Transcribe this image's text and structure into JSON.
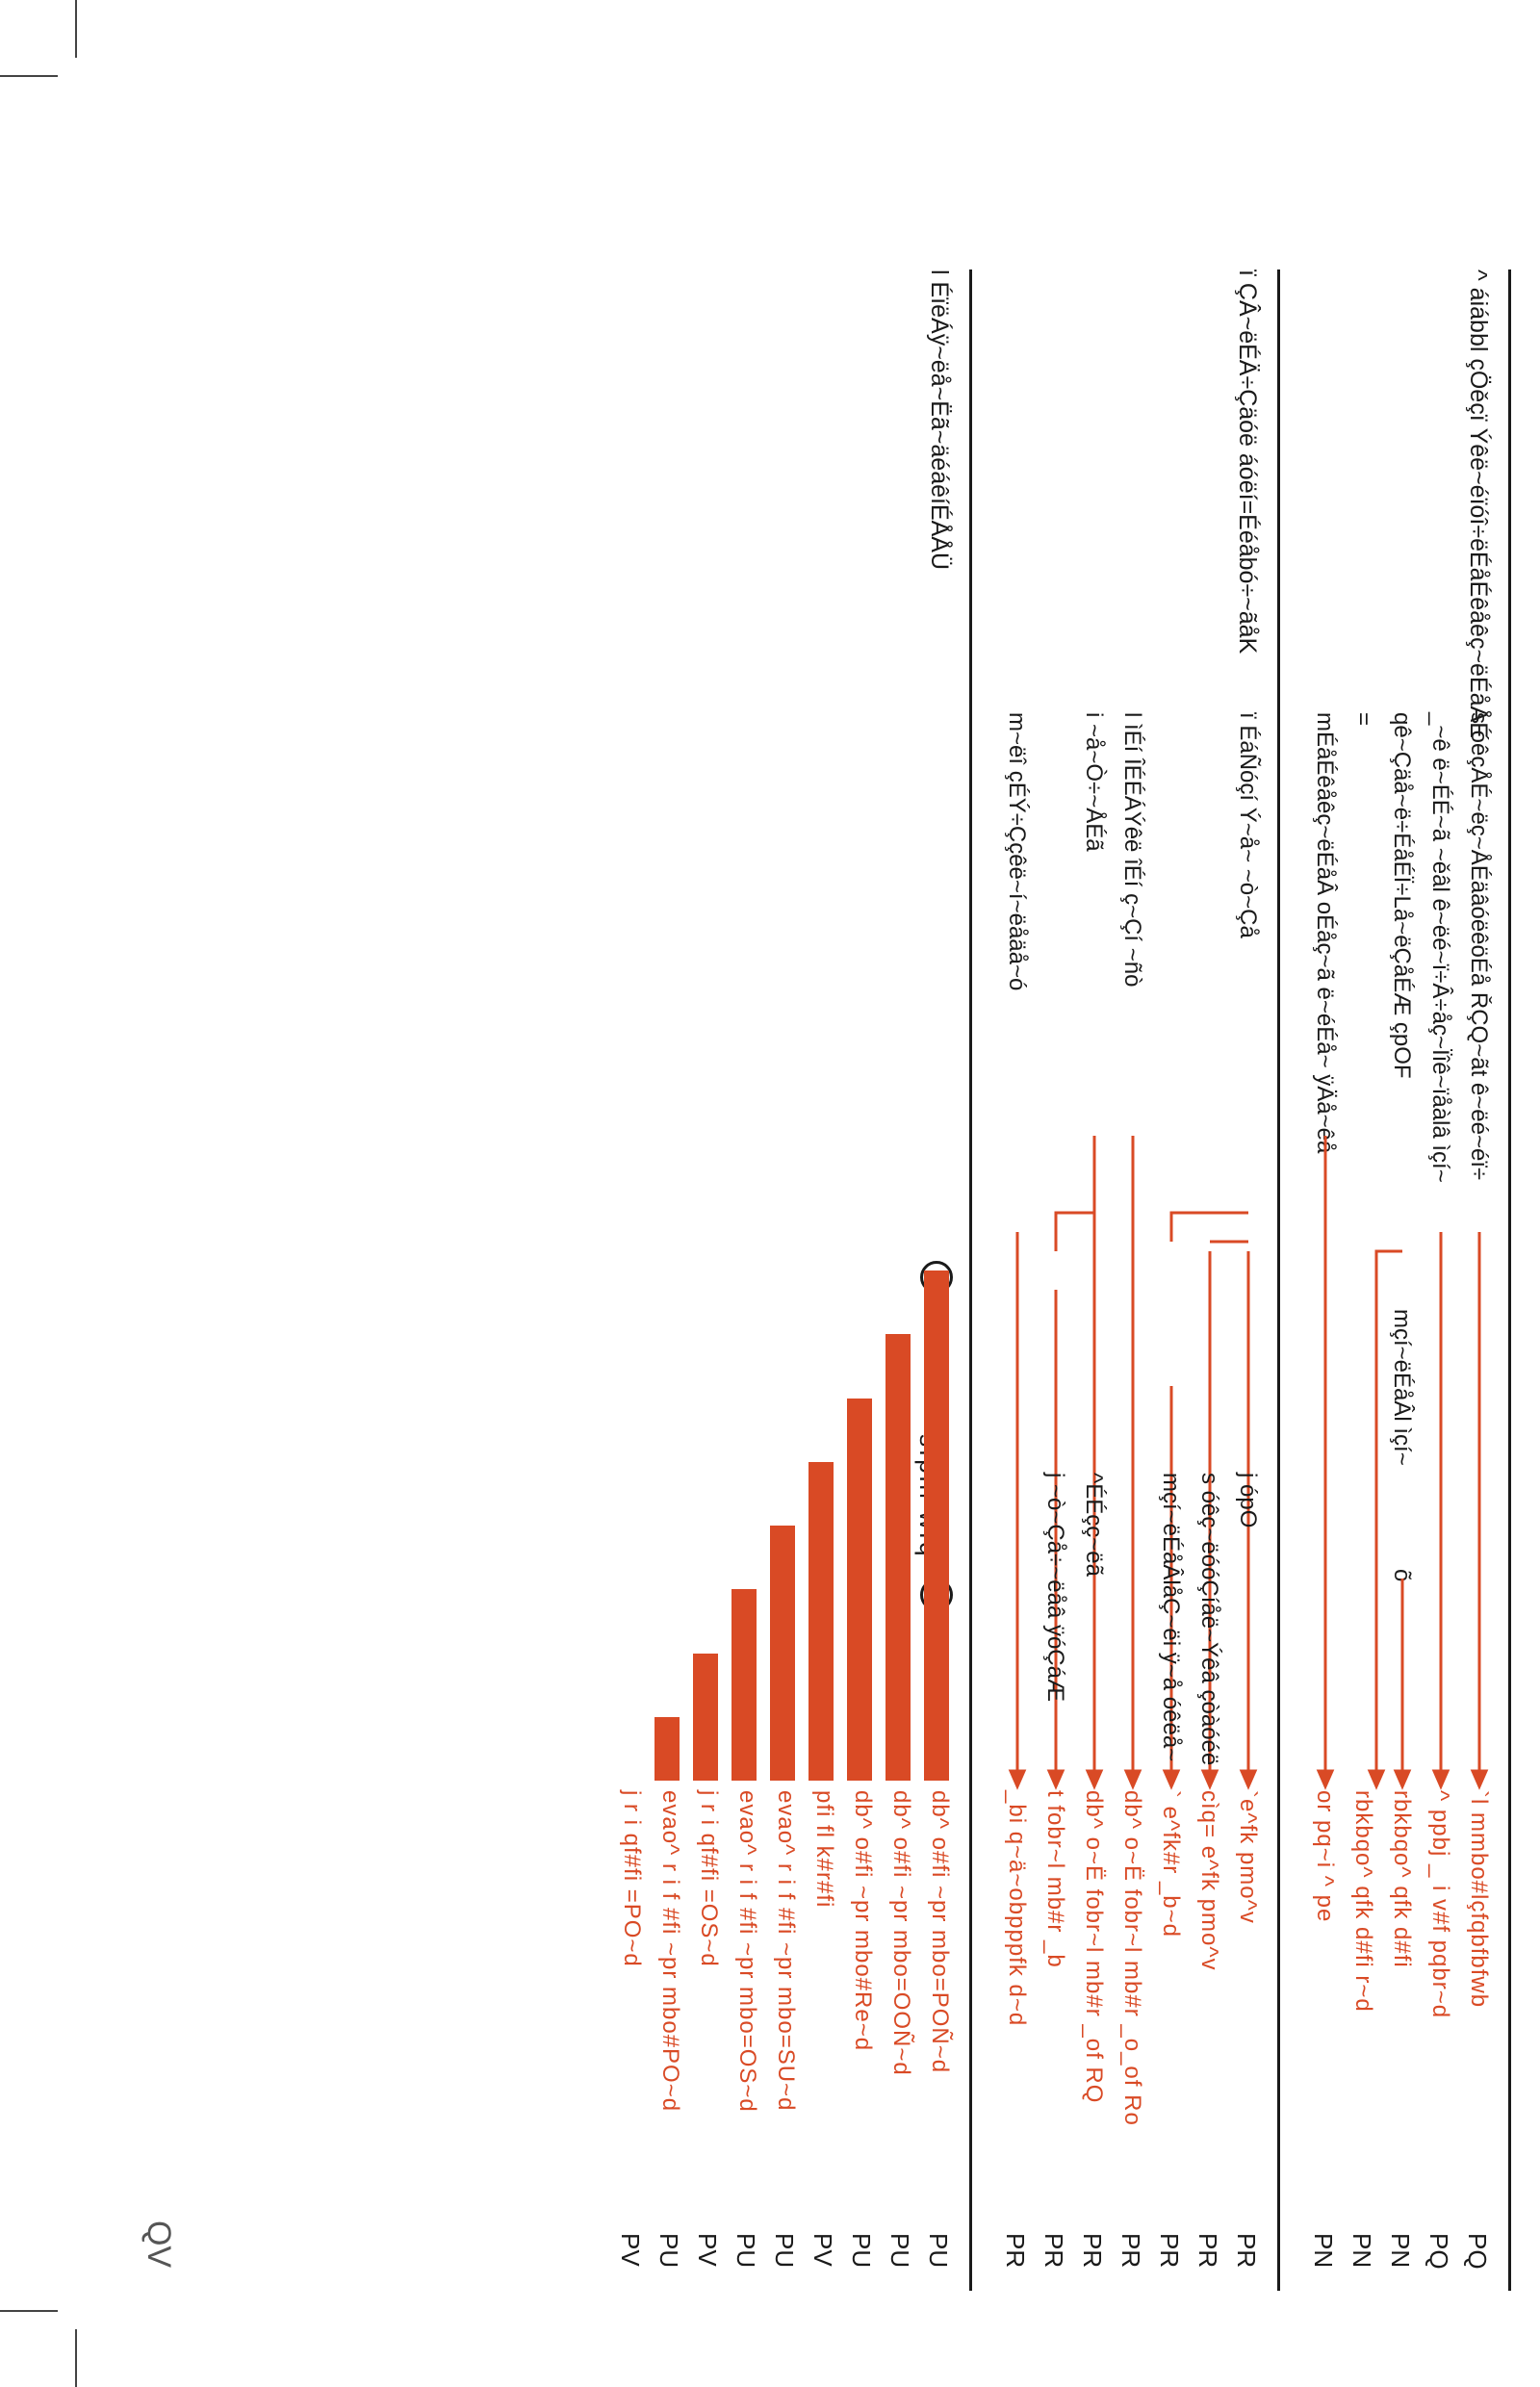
{
  "page": {
    "folio": "QV"
  },
  "colors": {
    "accent": "#d94a25",
    "text": "#1a1a1a",
    "rule": "#1a1a1a"
  },
  "sections": [
    {
      "title": "^ áiábbl çÖěçï Ýêë~éïóî÷ëÉåÉêåêç~ëÉåÅÉ",
      "rows": [
        {
          "label": "s óêçÅÉ~ëç~ÅÉäâóëêöÉå ŘÇQ~ãt ê~ëé~éï÷",
          "target": "`l mmbo#lçfqbfbfwb",
          "num": "PQ"
        },
        {
          "label": "_~ê ë~ÉÉ~ã ~ěâl ê~ëé~ï÷Â÷åç~Ïîê~ïåàlâ ìçí~",
          "target": "^ ppbj _ i v#f pqbr~d",
          "num": "PQ"
        },
        {
          "label": "qê~Çäå~ë÷ÉåÉÏ÷Lå~ëÇåÉÆ çpOF",
          "target": "rbkbqo^ qfk d#fi",
          "num": "PN"
        },
        {
          "label": "=",
          "target": "rbkbqo^ qfk d#fi r~d",
          "num": "PN"
        },
        {
          "label": "mÉåÉêåêç~ëÉåÂ oÉåç~ã ë~éÉå~ ÿÄå~êå",
          "target": "or pq~i ^ pe",
          "num": "PN"
        }
      ],
      "middle_label": "mçí~ëÉåÂl ìçí~",
      "middle_mark": "õ"
    },
    {
      "title": "ï ÇÂ~ëÉÄ÷Çäóë áóëí=Ééåbó÷~ãåK",
      "rows": [
        {
          "label": "ï ÉáÑóçí Ý~å~ ~ò~Çå",
          "mid": "j ópO",
          "target": "`e^fk pmo^v",
          "num": "PR"
        },
        {
          "label": "",
          "mid": "s óêç~ëóóÇíåë~Ýêâ çòàóéë",
          "target": "cìq= e^fk pmo^v",
          "num": "PR"
        },
        {
          "label": "",
          "mid": "mçí~ëÉåÂlåÇ~ëi ÿ~å óêëå~",
          "target": "` e^fk#r _b~d",
          "num": "PR"
        },
        {
          "label": "l ìÉí ÎÉÉÁÝêë îÉí ç~Çí ~ñò",
          "target": "db^ o~Ë fobr~l mb#r _o_of Ro",
          "num": "PR"
        },
        {
          "label": "i ~å~Ò÷~ÅÉã",
          "mid": "^ÉÉçç~ëã",
          "target": "db^ o~Ë fobr~l mb#r _of RQ",
          "num": "PR"
        },
        {
          "label": "",
          "mid": "j ~ò~Çå÷~ëåâ ÿóÇáÆ",
          "target": "t fobr~l mb#r _b",
          "num": "PR"
        },
        {
          "label": "m~ëî çÉÝ÷Ççêë~í~ëåäå~ó",
          "target": "_bi q~ä~obpppfk d~d",
          "num": "PR"
        }
      ]
    },
    {
      "title": "l ÉïëÁÿ~ëå~Ëã~äéáêíÉÅÅÜ",
      "scale_label": "sfphl wfq^",
      "bars": [
        {
          "target": "db^ o#fi ~pr mbo=POÑ~d",
          "num": "PU",
          "level": 1.0
        },
        {
          "target": "db^ o#fi ~pr mbo=OOÑ~d",
          "num": "PU",
          "level": 0.86
        },
        {
          "target": "db^ o#fi ~pr mbo#Re~d",
          "num": "PU",
          "level": 0.72
        },
        {
          "target": "pfi fl k#r#fi",
          "num": "PV",
          "level": 0.58
        },
        {
          "target": "evao^ r i f #fi ~pr mbo=SU~d",
          "num": "PU",
          "level": 0.44
        },
        {
          "target": "evao^ r i f #fi ~pr mbo=OS~d",
          "num": "PU",
          "level": 0.3
        },
        {
          "target": "j r i qf#fi =OS~d",
          "num": "PV",
          "level": 0.16
        },
        {
          "target": "evao^ r i f #fi ~pr mbo#PO~d",
          "num": "PU",
          "level": 0.02
        },
        {
          "target": "j r i qf#fi =PO~d",
          "num": "PV",
          "level": 0.0
        }
      ]
    }
  ]
}
